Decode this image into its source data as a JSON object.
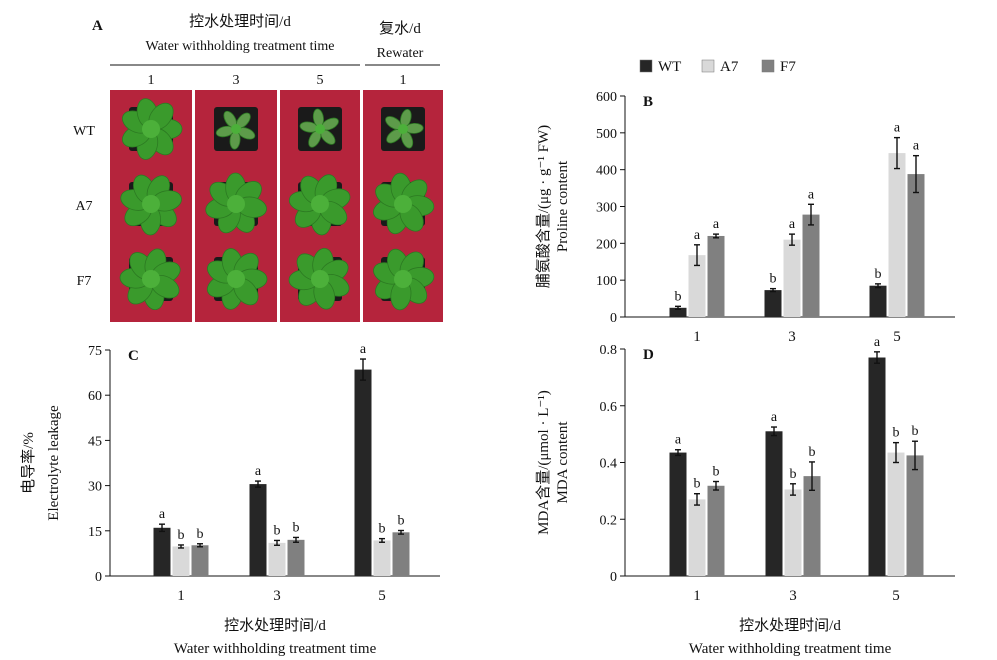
{
  "colors": {
    "WT": "#262626",
    "A7": "#d9d9d9",
    "F7": "#808080",
    "photo_bg": "#b5243c",
    "leaf": "#3a9a2c",
    "pot": "#1a1a1a"
  },
  "legend": [
    "WT",
    "A7",
    "F7"
  ],
  "panelA": {
    "letter": "A",
    "header_zh": "控水处理时间/d",
    "header_en": "Water withholding treatment time",
    "rewater_zh": "复水/d",
    "rewater_en": "Rewater",
    "columns": [
      "1",
      "3",
      "5",
      "1"
    ],
    "rows": [
      "WT",
      "A7",
      "F7"
    ]
  },
  "chart_data": [
    {
      "id": "B",
      "type": "bar",
      "letter": "B",
      "categories": [
        "1",
        "3",
        "5"
      ],
      "ylabel_zh": "脯氨酸含量/(μg · g⁻¹ FW)",
      "ylabel_en": "Proline content",
      "xlabel_zh": "",
      "xlabel_en": "",
      "ylim": [
        0,
        600
      ],
      "yticks": [
        "0",
        "100",
        "200",
        "300",
        "400",
        "500",
        "600"
      ],
      "series": [
        {
          "name": "WT",
          "values": [
            25,
            73,
            85
          ],
          "errors": [
            4,
            4,
            5
          ],
          "letters": [
            "b",
            "b",
            "b"
          ]
        },
        {
          "name": "A7",
          "values": [
            168,
            210,
            445
          ],
          "errors": [
            28,
            15,
            42
          ],
          "letters": [
            "a",
            "a",
            "a"
          ]
        },
        {
          "name": "F7",
          "values": [
            220,
            278,
            388
          ],
          "errors": [
            5,
            28,
            50
          ],
          "letters": [
            "a",
            "a",
            "a"
          ]
        }
      ]
    },
    {
      "id": "C",
      "type": "bar",
      "letter": "C",
      "categories": [
        "1",
        "3",
        "5"
      ],
      "ylabel_zh": "电导率/%",
      "ylabel_en": "Electrolyte leakage",
      "xlabel_zh": "控水处理时间/d",
      "xlabel_en": "Water withholding treatment time",
      "ylim": [
        0,
        75
      ],
      "yticks": [
        "0",
        "15",
        "30",
        "45",
        "60",
        "75"
      ],
      "series": [
        {
          "name": "WT",
          "values": [
            16,
            30.5,
            68.5
          ],
          "errors": [
            1.2,
            1.0,
            3.5
          ],
          "letters": [
            "a",
            "a",
            "a"
          ]
        },
        {
          "name": "A7",
          "values": [
            9.8,
            11,
            11.8
          ],
          "errors": [
            0.5,
            0.8,
            0.6
          ],
          "letters": [
            "b",
            "b",
            "b"
          ]
        },
        {
          "name": "F7",
          "values": [
            10.2,
            12,
            14.5
          ],
          "errors": [
            0.5,
            0.8,
            0.6
          ],
          "letters": [
            "b",
            "b",
            "b"
          ]
        }
      ]
    },
    {
      "id": "D",
      "type": "bar",
      "letter": "D",
      "categories": [
        "1",
        "3",
        "5"
      ],
      "ylabel_zh": "MDA含量/(μmol · L⁻¹)",
      "ylabel_en": "MDA content",
      "xlabel_zh": "控水处理时间/d",
      "xlabel_en": "Water withholding treatment time",
      "ylim": [
        0,
        0.8
      ],
      "yticks": [
        "0",
        "0.2",
        "0.4",
        "0.6",
        "0.8"
      ],
      "series": [
        {
          "name": "WT",
          "values": [
            0.435,
            0.51,
            0.77
          ],
          "errors": [
            0.01,
            0.015,
            0.02
          ],
          "letters": [
            "a",
            "a",
            "a"
          ]
        },
        {
          "name": "A7",
          "values": [
            0.27,
            0.305,
            0.435
          ],
          "errors": [
            0.02,
            0.02,
            0.035
          ],
          "letters": [
            "b",
            "b",
            "b"
          ]
        },
        {
          "name": "F7",
          "values": [
            0.318,
            0.352,
            0.425
          ],
          "errors": [
            0.015,
            0.05,
            0.05
          ],
          "letters": [
            "b",
            "b",
            "b"
          ]
        }
      ]
    }
  ]
}
